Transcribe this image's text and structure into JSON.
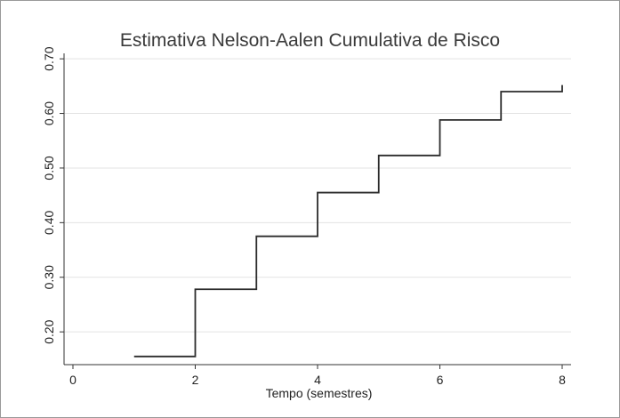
{
  "chart_data": {
    "type": "line",
    "title": "Estimativa Nelson-Aalen Cumulativa de Risco",
    "xlabel": "Tempo (semestres)",
    "ylabel": "",
    "xlim": [
      0,
      8
    ],
    "ylim": [
      0.14,
      0.71
    ],
    "x_ticks": [
      0,
      2,
      4,
      6,
      8
    ],
    "y_ticks": [
      0.2,
      0.3,
      0.4,
      0.5,
      0.6,
      0.7
    ],
    "y_tick_labels": [
      "0.20",
      "0.30",
      "0.40",
      "0.50",
      "0.60",
      "0.70"
    ],
    "grid": true,
    "series": [
      {
        "step": "post",
        "x": [
          1,
          2,
          3,
          4,
          5,
          6,
          7,
          8
        ],
        "y": [
          0.155,
          0.278,
          0.375,
          0.455,
          0.523,
          0.588,
          0.64,
          0.652
        ]
      }
    ],
    "colors": {
      "line": "#2b2b2b",
      "grid": "#e3e3e3",
      "axis": "#333333"
    }
  }
}
